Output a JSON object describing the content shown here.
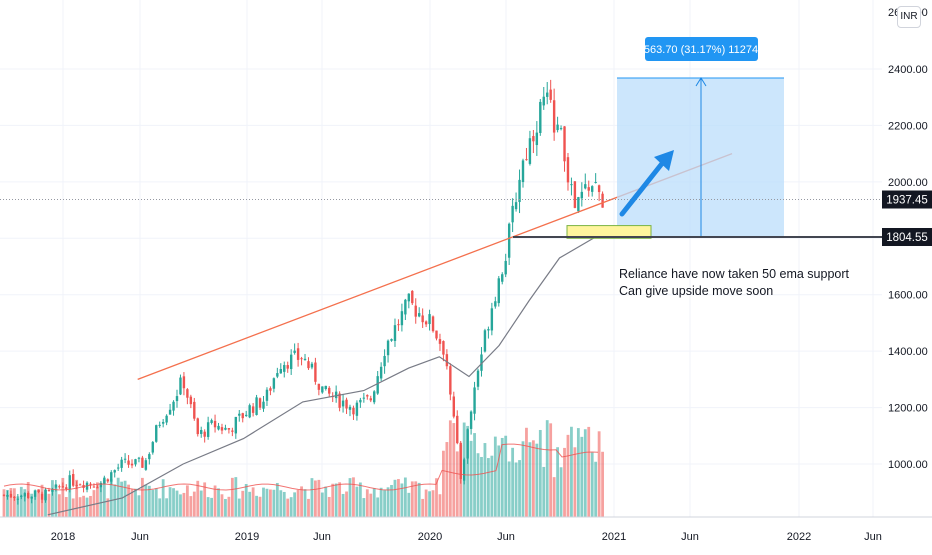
{
  "currency": "INR",
  "annotation": {
    "line1": "Reliance have now taken 50 ema support",
    "line2": "Can give upside move soon"
  },
  "position_label": "563.70 (31.17%) 11274",
  "colors": {
    "bull": "#26a69a",
    "bear": "#ef5350",
    "ema": "#787b86",
    "trendline": "#f4704d",
    "target_fill": "#bbdefb",
    "label_bg": "#2196f3",
    "support_zone": "#fff59d"
  },
  "chart_data": {
    "type": "candlestick",
    "title": "",
    "xlabel": "",
    "ylabel": "",
    "ylim": [
      800,
      2600
    ],
    "x_ticks": [
      "2018",
      "Jun",
      "2019",
      "Jun",
      "2020",
      "Jun",
      "2021",
      "Jun",
      "2022",
      "Jun"
    ],
    "y_ticks": [
      1000,
      1200,
      1400,
      1600,
      1800,
      2000,
      2200,
      2400
    ],
    "y_tick_labels": [
      "1000.00",
      "1200.00",
      "1400.00",
      "1600.00",
      "1800.00",
      "2000.00",
      "2200.00",
      "2400.00"
    ],
    "cut_top_tick_label": "2600.00",
    "current_price": 1937.45,
    "current_price_label": "1937.45",
    "support_level": 1804.55,
    "support_level_label": "1804.55",
    "target_level": 2368.25,
    "price_series": [
      [
        "2017-12-01",
        890
      ],
      [
        "2018-01-15",
        940
      ],
      [
        "2018-03-15",
        930
      ],
      [
        "2018-05-01",
        1000
      ],
      [
        "2018-06-15",
        1000
      ],
      [
        "2018-07-15",
        1150
      ],
      [
        "2018-08-15",
        1240
      ],
      [
        "2018-09-01",
        1300
      ],
      [
        "2018-10-01",
        1100
      ],
      [
        "2018-11-01",
        1140
      ],
      [
        "2018-12-01",
        1120
      ],
      [
        "2019-01-15",
        1200
      ],
      [
        "2019-02-15",
        1230
      ],
      [
        "2019-03-15",
        1360
      ],
      [
        "2019-05-01",
        1380
      ],
      [
        "2019-06-15",
        1250
      ],
      [
        "2019-08-15",
        1200
      ],
      [
        "2019-09-15",
        1230
      ],
      [
        "2019-10-15",
        1420
      ],
      [
        "2019-12-01",
        1570
      ],
      [
        "2020-01-15",
        1500
      ],
      [
        "2020-02-15",
        1390
      ],
      [
        "2020-03-15",
        950
      ],
      [
        "2020-04-15",
        1300
      ],
      [
        "2020-05-15",
        1550
      ],
      [
        "2020-06-15",
        1750
      ],
      [
        "2020-07-15",
        2050
      ],
      [
        "2020-09-01",
        2300
      ],
      [
        "2020-10-01",
        2180
      ],
      [
        "2020-11-01",
        1900
      ],
      [
        "2020-12-01",
        2000
      ],
      [
        "2020-12-28",
        1937
      ]
    ],
    "ema_series": [
      [
        "2017-12-01",
        820
      ],
      [
        "2018-05-01",
        880
      ],
      [
        "2018-09-01",
        1000
      ],
      [
        "2019-01-01",
        1090
      ],
      [
        "2019-05-01",
        1220
      ],
      [
        "2019-09-01",
        1260
      ],
      [
        "2019-12-01",
        1340
      ],
      [
        "2020-02-01",
        1380
      ],
      [
        "2020-04-01",
        1310
      ],
      [
        "2020-06-01",
        1420
      ],
      [
        "2020-08-01",
        1580
      ],
      [
        "2020-10-01",
        1730
      ],
      [
        "2020-12-28",
        1820
      ]
    ],
    "trendline": [
      [
        "2018-06-01",
        1300
      ],
      [
        "2021-09-15",
        2100
      ]
    ]
  }
}
